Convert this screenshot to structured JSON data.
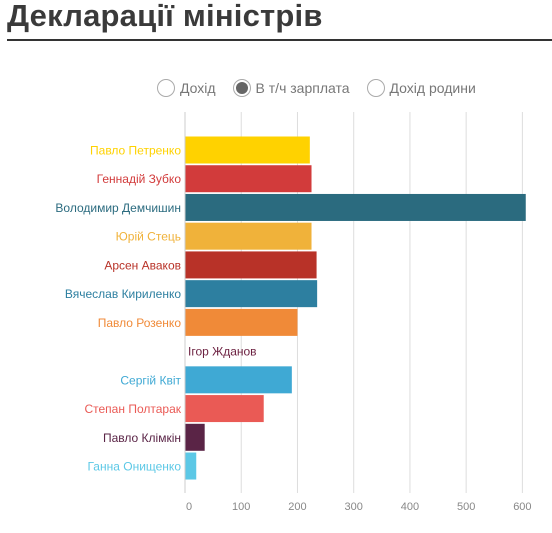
{
  "title": "Декларації міністрів",
  "radio_options": [
    {
      "label": "Дохід",
      "selected": false
    },
    {
      "label": "В т/ч зарплата",
      "selected": true
    },
    {
      "label": "Дохід родини",
      "selected": false
    }
  ],
  "chart_data": {
    "type": "bar",
    "orientation": "horizontal",
    "title": "",
    "xlabel": "",
    "ylabel": "",
    "xlim": [
      0,
      600
    ],
    "x_ticks": [
      0,
      100,
      200,
      300,
      400,
      500,
      600
    ],
    "grid": true,
    "categories": [
      "Павло Петренко",
      "Геннадій Зубко",
      "Володимир Демчишин",
      "Юрій Стець",
      "Арсен Аваков",
      "Вячеслав Кириленко",
      "Павло Розенко",
      "Ігор Жданов",
      "Сергій Квіт",
      "Степан Полтарак",
      "Павло Клімкін",
      "Ганна Онищенко"
    ],
    "values": [
      222,
      225,
      606,
      225,
      234,
      235,
      200,
      0,
      190,
      140,
      35,
      20
    ],
    "colors": [
      "#ffd200",
      "#d23b3b",
      "#2b6b7f",
      "#f0b23a",
      "#b83228",
      "#2d7fa0",
      "#f08a38",
      "#6b1f3f",
      "#3fa9d4",
      "#ea5a55",
      "#5a2446",
      "#5cc8e6"
    ]
  }
}
